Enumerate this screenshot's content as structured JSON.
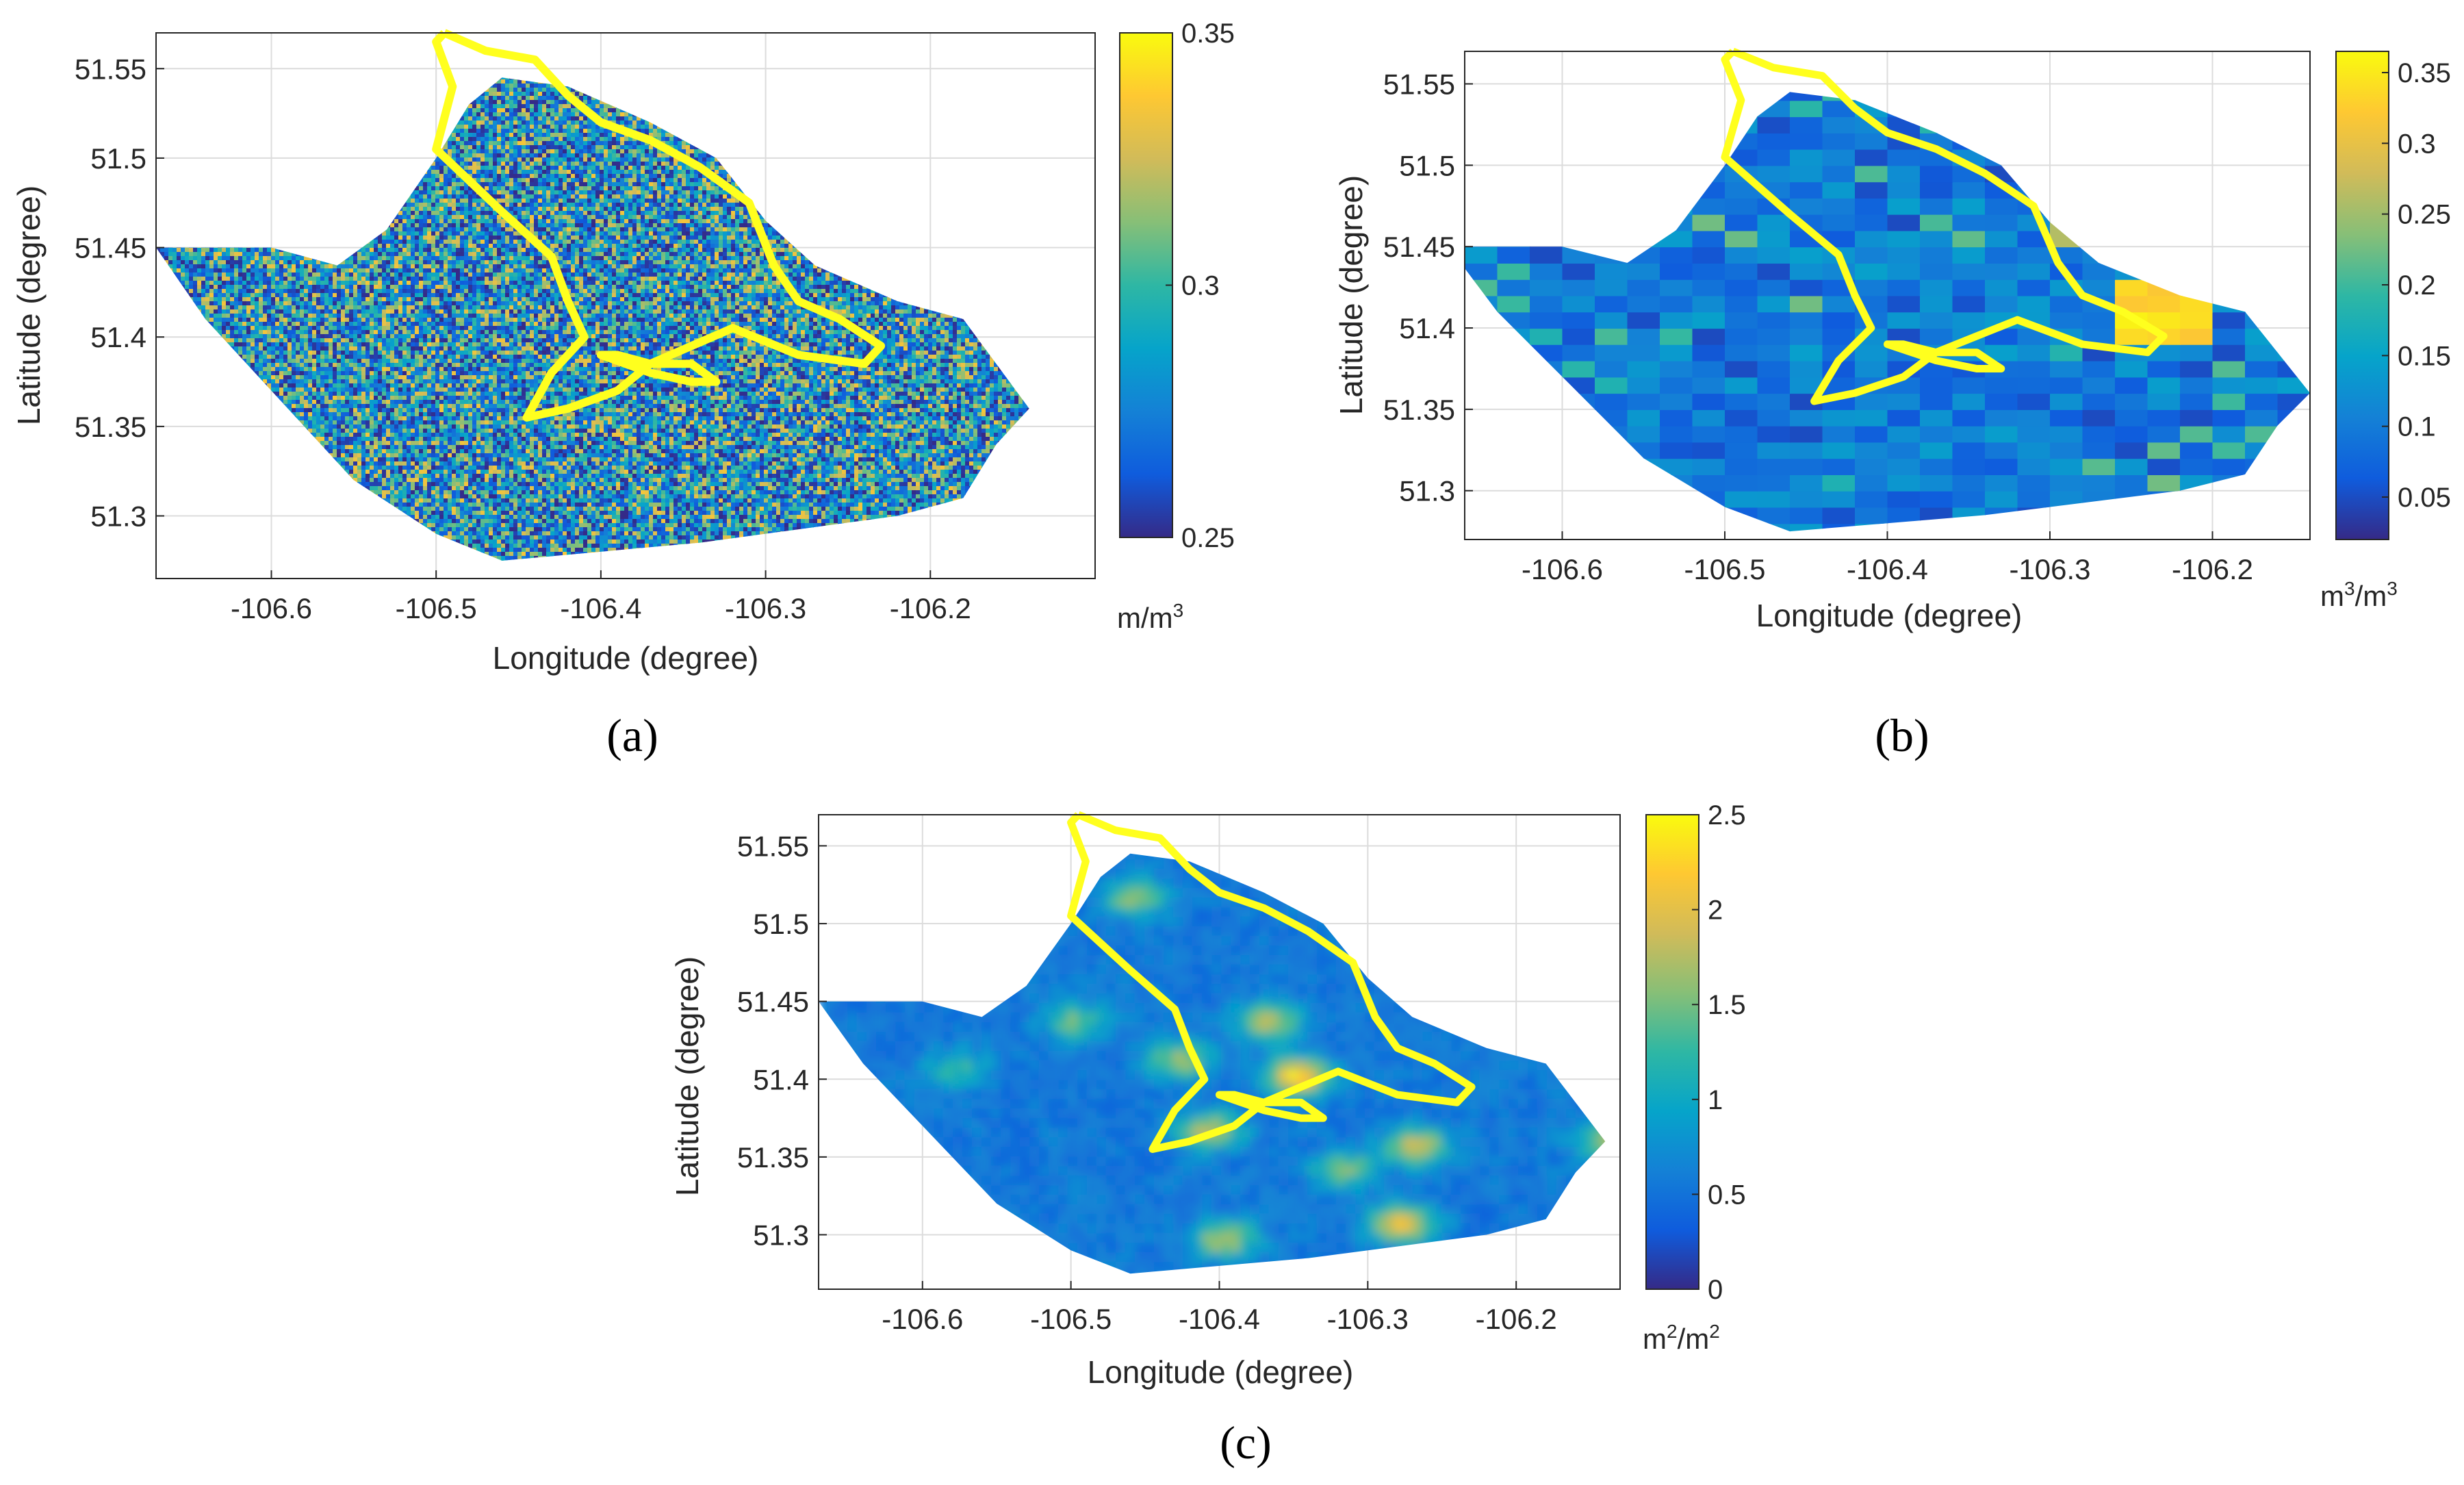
{
  "chart_data": [
    {
      "type": "heatmap",
      "panel_label": "(a)",
      "xlabel": "Longitude (degree)",
      "ylabel": "Latitude (degree)",
      "xlim": [
        -106.67,
        -106.1
      ],
      "ylim": [
        51.265,
        51.57
      ],
      "xticks": [
        -106.6,
        -106.5,
        -106.4,
        -106.3,
        -106.2
      ],
      "xtick_labels": [
        "-106.6",
        "-106.5",
        "-106.4",
        "-106.3",
        "-106.2"
      ],
      "yticks": [
        51.3,
        51.35,
        51.4,
        51.45,
        51.5,
        51.55
      ],
      "ytick_labels": [
        "51.3",
        "51.35",
        "51.4",
        "51.45",
        "51.5",
        "51.55"
      ],
      "grid": true,
      "colorbar": {
        "range": [
          0.25,
          0.35
        ],
        "ticks": [
          0.25,
          0.3,
          0.35
        ],
        "tick_labels": [
          "0.25",
          "0.3",
          "0.35"
        ],
        "unit": "m/m3"
      },
      "texture": "speckle",
      "value_mean": 0.29
    },
    {
      "type": "heatmap",
      "panel_label": "(b)",
      "xlabel": "Longitude (degree)",
      "ylabel": "Latitude (degree)",
      "xlim": [
        -106.66,
        -106.14
      ],
      "ylim": [
        51.27,
        51.57
      ],
      "xticks": [
        -106.6,
        -106.5,
        -106.4,
        -106.3,
        -106.2
      ],
      "xtick_labels": [
        "-106.6",
        "-106.5",
        "-106.4",
        "-106.3",
        "-106.2"
      ],
      "yticks": [
        51.3,
        51.35,
        51.4,
        51.45,
        51.5,
        51.55
      ],
      "ytick_labels": [
        "51.3",
        "51.35",
        "51.4",
        "51.45",
        "51.5",
        "51.55"
      ],
      "grid": true,
      "colorbar": {
        "range": [
          0.02,
          0.365
        ],
        "ticks": [
          0.05,
          0.1,
          0.15,
          0.2,
          0.25,
          0.3,
          0.35
        ],
        "tick_labels": [
          "0.05",
          "0.1",
          "0.15",
          "0.2",
          "0.25",
          "0.3",
          "0.35"
        ],
        "unit": "m3/m3"
      },
      "texture": "blocks",
      "value_mean": 0.12
    },
    {
      "type": "heatmap",
      "panel_label": "(c)",
      "xlabel": "Longitude (degree)",
      "ylabel": "Latitude (degree)",
      "xlim": [
        -106.67,
        -106.13
      ],
      "ylim": [
        51.265,
        51.57
      ],
      "xticks": [
        -106.6,
        -106.5,
        -106.4,
        -106.3,
        -106.2
      ],
      "xtick_labels": [
        "-106.6",
        "-106.5",
        "-106.4",
        "-106.3",
        "-106.2"
      ],
      "yticks": [
        51.3,
        51.35,
        51.4,
        51.45,
        51.5,
        51.55
      ],
      "ytick_labels": [
        "51.3",
        "51.35",
        "51.4",
        "51.45",
        "51.5",
        "51.55"
      ],
      "grid": true,
      "colorbar": {
        "range": [
          0,
          2.5
        ],
        "ticks": [
          0,
          0.5,
          1,
          1.5,
          2,
          2.5
        ],
        "tick_labels": [
          "0",
          "0.5",
          "1",
          "1.5",
          "2",
          "2.5"
        ],
        "unit": "m2/m2"
      },
      "texture": "smooth",
      "value_mean": 0.8,
      "hotspots": [
        {
          "x": -106.35,
          "y": 51.405,
          "value": 2.4
        },
        {
          "x": -106.37,
          "y": 51.44,
          "value": 1.8
        },
        {
          "x": -106.41,
          "y": 51.37,
          "value": 1.9
        },
        {
          "x": -106.27,
          "y": 51.36,
          "value": 1.9
        },
        {
          "x": -106.28,
          "y": 51.31,
          "value": 2.1
        },
        {
          "x": -106.46,
          "y": 51.52,
          "value": 1.7
        },
        {
          "x": -106.43,
          "y": 51.415,
          "value": 1.7
        },
        {
          "x": -106.5,
          "y": 51.44,
          "value": 1.5
        },
        {
          "x": -106.14,
          "y": 51.365,
          "value": 1.8
        },
        {
          "x": -106.4,
          "y": 51.3,
          "value": 1.8
        },
        {
          "x": -106.32,
          "y": 51.345,
          "value": 1.6
        },
        {
          "x": -106.58,
          "y": 51.41,
          "value": 1.3
        }
      ]
    }
  ],
  "colors": {
    "outline": "#ffff1e",
    "grid": "#dcdcdc",
    "axes": "#262626",
    "colormap": "parula"
  }
}
